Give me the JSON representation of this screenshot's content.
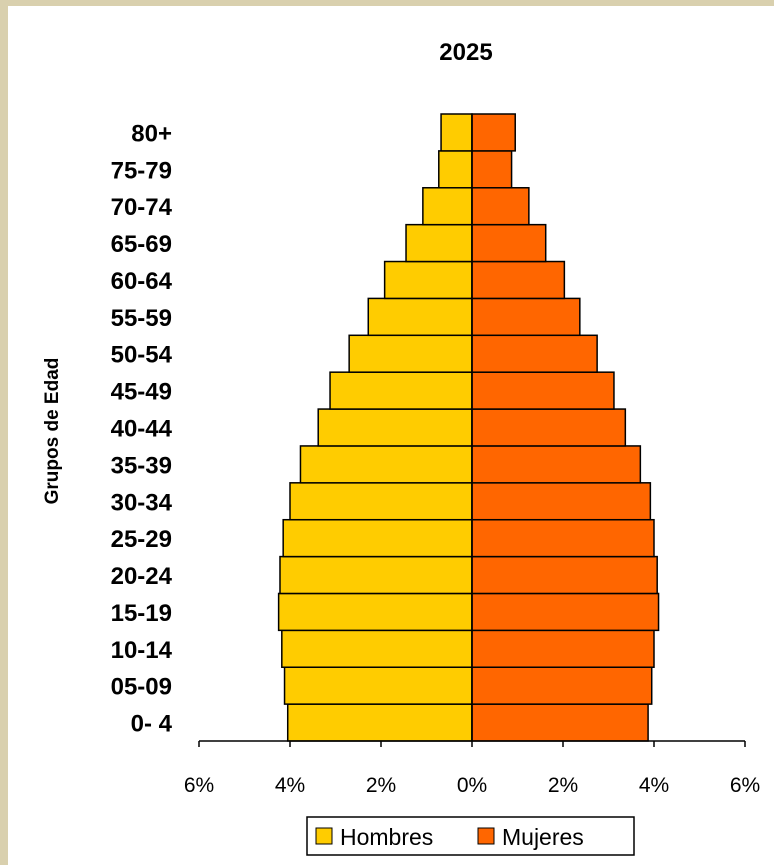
{
  "chart_data": {
    "type": "bar",
    "orientation": "horizontal",
    "layout": "population-pyramid",
    "title": "2025",
    "xlabel": "",
    "ylabel": "Grupos de Edad",
    "xlim": [
      -6,
      6
    ],
    "x_ticks": [
      "6%",
      "4%",
      "2%",
      "0%",
      "2%",
      "4%",
      "6%"
    ],
    "categories": [
      "0- 4",
      "05-09",
      "10-14",
      "15-19",
      "20-24",
      "25-29",
      "30-34",
      "35-39",
      "40-44",
      "45-49",
      "50-54",
      "55-59",
      "60-64",
      "65-69",
      "70-74",
      "75-79",
      "80+"
    ],
    "series": [
      {
        "name": "Hombres",
        "color": "#ffcc00",
        "values": [
          4.05,
          4.12,
          4.18,
          4.25,
          4.22,
          4.15,
          4.0,
          3.77,
          3.38,
          3.12,
          2.7,
          2.28,
          1.92,
          1.45,
          1.08,
          0.73,
          0.68
        ]
      },
      {
        "name": "Mujeres",
        "color": "#ff6600",
        "values": [
          3.87,
          3.95,
          4.0,
          4.1,
          4.07,
          4.0,
          3.92,
          3.7,
          3.37,
          3.12,
          2.75,
          2.37,
          2.03,
          1.62,
          1.25,
          0.87,
          0.95
        ]
      }
    ],
    "legend": {
      "position": "bottom"
    },
    "grid": false
  }
}
